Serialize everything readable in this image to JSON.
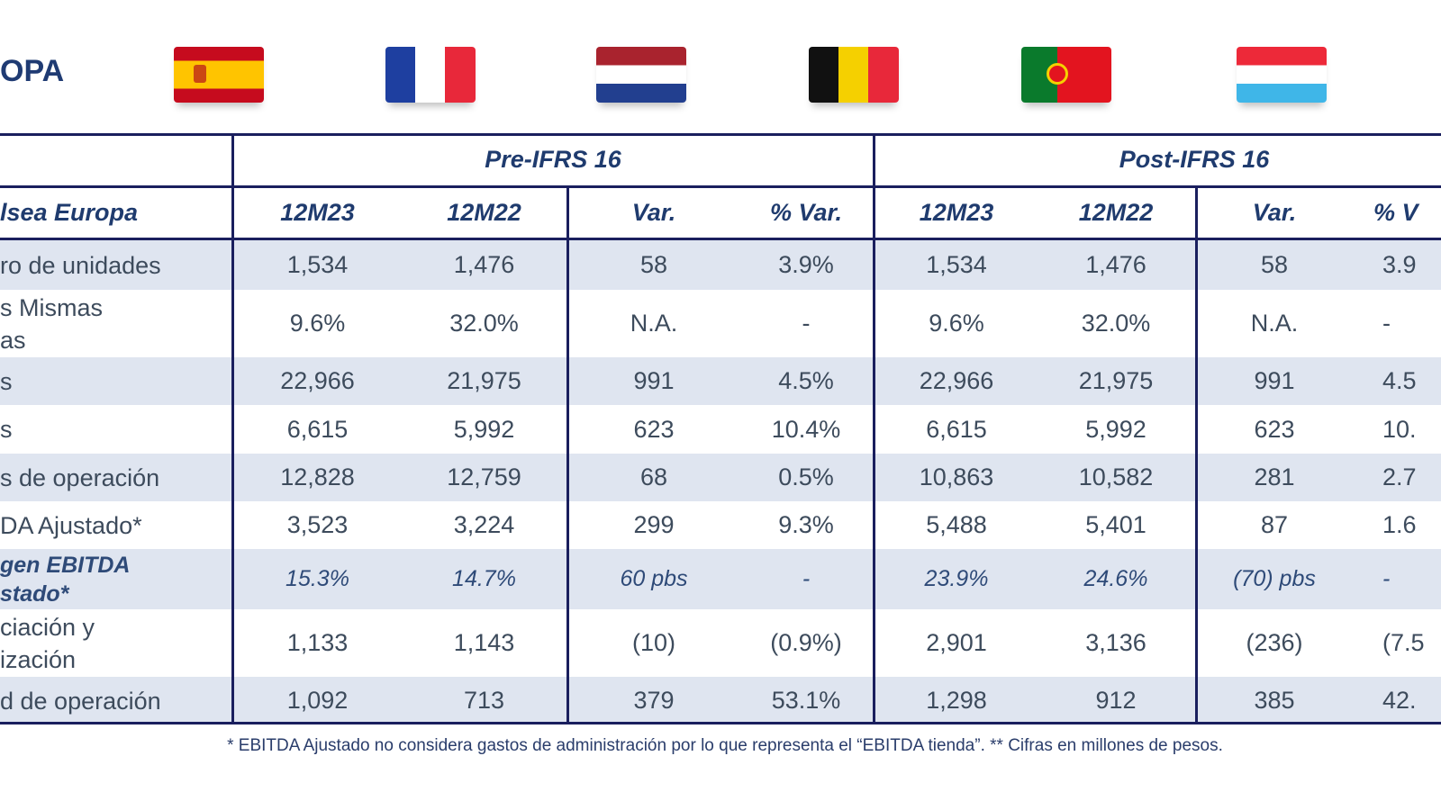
{
  "title": "OPA",
  "flags": [
    {
      "name": "spain-flag"
    },
    {
      "name": "france-flag"
    },
    {
      "name": "netherlands-flag"
    },
    {
      "name": "belgium-flag"
    },
    {
      "name": "portugal-flag"
    },
    {
      "name": "luxembourg-flag"
    }
  ],
  "groups": {
    "pre": "Pre-IFRS 16",
    "post": "Post-IFRS 16"
  },
  "headers": [
    "lsea Europa",
    "12M23",
    "12M22",
    "Var.",
    "% Var.",
    "12M23",
    "12M22",
    "Var.",
    "% V"
  ],
  "rows": [
    {
      "label": "ro de unidades",
      "values": [
        "1,534",
        "1,476",
        "58",
        "3.9%",
        "1,534",
        "1,476",
        "58",
        "3.9"
      ]
    },
    {
      "label": "s Mismas\nas",
      "values": [
        "9.6%",
        "32.0%",
        "N.A.",
        "-",
        "9.6%",
        "32.0%",
        "N.A.",
        "-"
      ]
    },
    {
      "label": "s",
      "values": [
        "22,966",
        "21,975",
        "991",
        "4.5%",
        "22,966",
        "21,975",
        "991",
        "4.5"
      ]
    },
    {
      "label": "s",
      "values": [
        "6,615",
        "5,992",
        "623",
        "10.4%",
        "6,615",
        "5,992",
        "623",
        "10."
      ]
    },
    {
      "label": "s de operación",
      "values": [
        "12,828",
        "12,759",
        "68",
        "0.5%",
        "10,863",
        "10,582",
        "281",
        "2.7"
      ]
    },
    {
      "label": "DA Ajustado*",
      "values": [
        "3,523",
        "3,224",
        "299",
        "9.3%",
        "5,488",
        "5,401",
        "87",
        "1.6"
      ]
    },
    {
      "label": "gen EBITDA\nstado*",
      "values": [
        "15.3%",
        "14.7%",
        "60 pbs",
        "-",
        "23.9%",
        "24.6%",
        "(70) pbs",
        "-"
      ]
    },
    {
      "label": "ciación y\nización",
      "values": [
        "1,133",
        "1,143",
        "(10)",
        "(0.9%)",
        "2,901",
        "3,136",
        "(236)",
        "(7.5"
      ]
    },
    {
      "label": "d de operación",
      "values": [
        "1,092",
        "713",
        "379",
        "53.1%",
        "1,298",
        "912",
        "385",
        "42."
      ]
    }
  ],
  "footnote": "* EBITDA Ajustado no considera gastos de administración por lo que representa el “EBITDA tienda”. ** Cifras en millones de pesos."
}
